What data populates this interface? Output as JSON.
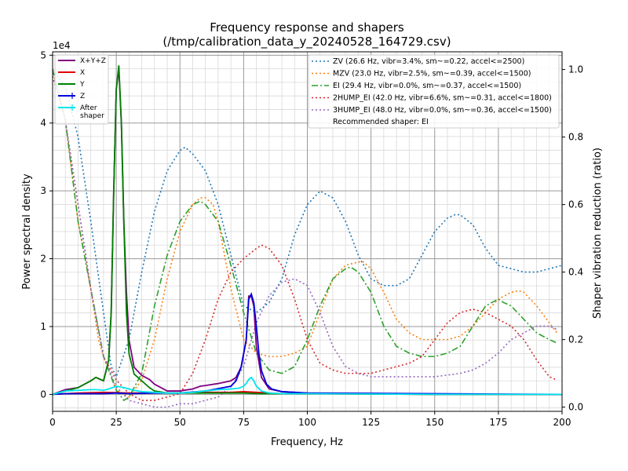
{
  "chart_data": {
    "type": "line",
    "title": "Frequency response and shapers",
    "subtitle": "(/tmp/calibration_data_y_20240528_164729.csv)",
    "xlabel": "Frequency, Hz",
    "ylabel": "Power spectral density",
    "y2label": "Shaper vibration reduction (ratio)",
    "y_exponent_label": "1e4",
    "xlim": [
      0,
      200
    ],
    "ylim": [
      -0.25,
      5.05
    ],
    "y2lim": [
      -0.0125,
      1.0525
    ],
    "xticks": [
      0,
      25,
      50,
      75,
      100,
      125,
      150,
      175,
      200
    ],
    "yticks": [
      0,
      1,
      2,
      3,
      4,
      5
    ],
    "y2ticks": [
      0.0,
      0.2,
      0.4,
      0.6,
      0.8,
      1.0
    ],
    "grid": true,
    "left_legend_position": "top-left",
    "right_legend_position": "top-right",
    "recommended_text": "Recommended shaper: EI",
    "psd_series": [
      {
        "name": "X+Y+Z",
        "color": "#800080",
        "x": [
          0,
          5,
          10,
          15,
          17,
          20,
          22,
          23,
          24,
          25,
          26,
          27,
          28,
          29,
          30,
          32,
          35,
          38,
          40,
          45,
          50,
          55,
          58,
          60,
          65,
          70,
          72,
          74,
          76,
          77,
          78,
          79,
          80,
          82,
          85,
          90,
          100,
          120,
          150,
          200
        ],
        "y": [
          0,
          0.07,
          0.1,
          0.2,
          0.25,
          0.2,
          0.5,
          1.2,
          3.0,
          4.5,
          4.8,
          4.0,
          2.5,
          1.5,
          0.8,
          0.4,
          0.28,
          0.22,
          0.15,
          0.05,
          0.05,
          0.08,
          0.12,
          0.13,
          0.16,
          0.2,
          0.25,
          0.4,
          0.8,
          1.45,
          1.45,
          1.3,
          0.7,
          0.25,
          0.08,
          0.04,
          0.02,
          0.01,
          0,
          0
        ]
      },
      {
        "name": "X",
        "color": "#e00000",
        "x": [
          0,
          10,
          20,
          30,
          40,
          50,
          60,
          70,
          75,
          80,
          85,
          90,
          100,
          150,
          200
        ],
        "y": [
          0,
          0.02,
          0.03,
          0.02,
          0.02,
          0.02,
          0.03,
          0.03,
          0.04,
          0.03,
          0.02,
          0.01,
          0.01,
          0,
          0
        ]
      },
      {
        "name": "Y",
        "color": "#008000",
        "x": [
          0,
          5,
          10,
          15,
          17,
          20,
          22,
          23,
          24,
          25,
          26,
          27,
          28,
          29,
          30,
          32,
          35,
          38,
          40,
          45,
          50,
          60,
          70,
          75,
          80,
          90,
          100,
          150,
          200
        ],
        "y": [
          0,
          0.05,
          0.1,
          0.2,
          0.25,
          0.2,
          0.5,
          1.2,
          3.0,
          4.5,
          4.85,
          4.0,
          2.5,
          1.2,
          0.6,
          0.3,
          0.2,
          0.1,
          0.05,
          0.02,
          0.02,
          0.02,
          0.02,
          0.02,
          0.01,
          0.01,
          0.01,
          0,
          0
        ]
      },
      {
        "name": "Z",
        "color": "#0000dd",
        "x": [
          0,
          5,
          10,
          20,
          25,
          30,
          40,
          50,
          60,
          70,
          72,
          74,
          76,
          77,
          78,
          79,
          80,
          81,
          82,
          84,
          86,
          90,
          95,
          100,
          150,
          200
        ],
        "y": [
          0,
          0.01,
          0.01,
          0.01,
          0.02,
          0.01,
          0.02,
          0.02,
          0.05,
          0.12,
          0.2,
          0.4,
          0.8,
          1.4,
          1.48,
          1.35,
          1.0,
          0.6,
          0.35,
          0.15,
          0.08,
          0.04,
          0.03,
          0.02,
          0.01,
          0
        ],
        "marker": "+"
      },
      {
        "name": "After\nshaper",
        "color": "#00e5ee",
        "x": [
          0,
          5,
          10,
          15,
          17,
          20,
          22,
          25,
          28,
          30,
          32,
          35,
          40,
          45,
          50,
          55,
          60,
          65,
          70,
          73,
          75,
          76,
          77,
          78,
          79,
          80,
          82,
          85,
          90,
          100,
          150,
          200
        ],
        "y": [
          0,
          0.05,
          0.06,
          0.07,
          0.07,
          0.06,
          0.08,
          0.12,
          0.1,
          0.08,
          0.06,
          0.04,
          0.03,
          0.02,
          0.02,
          0.03,
          0.05,
          0.07,
          0.08,
          0.09,
          0.12,
          0.16,
          0.22,
          0.25,
          0.2,
          0.12,
          0.05,
          0.02,
          0.01,
          0.01,
          0,
          0
        ],
        "marker": "+"
      }
    ],
    "shaper_series": [
      {
        "name": "ZV (26.6 Hz, vibr=3.4%, sm~=0.22, accel<=2500)",
        "color": "#1f77b4",
        "dash": "2,3",
        "x": [
          0,
          5,
          10,
          15,
          20,
          23,
          25,
          30,
          35,
          40,
          45,
          50,
          52,
          55,
          60,
          65,
          70,
          75,
          80,
          85,
          90,
          95,
          100,
          105,
          110,
          115,
          120,
          125,
          130,
          135,
          140,
          145,
          150,
          155,
          158,
          160,
          165,
          170,
          175,
          180,
          185,
          190,
          195,
          200
        ],
        "y": [
          1.0,
          0.95,
          0.8,
          0.55,
          0.28,
          0.12,
          0.09,
          0.2,
          0.4,
          0.58,
          0.7,
          0.76,
          0.77,
          0.75,
          0.7,
          0.6,
          0.45,
          0.3,
          0.28,
          0.31,
          0.38,
          0.51,
          0.6,
          0.64,
          0.62,
          0.55,
          0.45,
          0.38,
          0.36,
          0.36,
          0.38,
          0.45,
          0.52,
          0.56,
          0.57,
          0.57,
          0.54,
          0.47,
          0.42,
          0.41,
          0.4,
          0.4,
          0.41,
          0.42
        ]
      },
      {
        "name": "MZV (23.0 Hz, vibr=2.5%, sm~=0.39, accel<=1500)",
        "color": "#ff7f0e",
        "dash": "2,3",
        "x": [
          0,
          5,
          10,
          15,
          18,
          20,
          25,
          30,
          35,
          40,
          45,
          50,
          55,
          58,
          60,
          63,
          65,
          70,
          75,
          80,
          85,
          90,
          95,
          100,
          105,
          110,
          115,
          120,
          122,
          125,
          130,
          135,
          140,
          145,
          150,
          155,
          160,
          165,
          170,
          175,
          180,
          183,
          185,
          190,
          195,
          198
        ],
        "y": [
          1.0,
          0.85,
          0.55,
          0.35,
          0.2,
          0.15,
          0.05,
          0.03,
          0.08,
          0.2,
          0.38,
          0.52,
          0.6,
          0.62,
          0.62,
          0.6,
          0.55,
          0.35,
          0.2,
          0.16,
          0.15,
          0.15,
          0.16,
          0.18,
          0.28,
          0.38,
          0.42,
          0.43,
          0.43,
          0.41,
          0.34,
          0.26,
          0.22,
          0.2,
          0.2,
          0.2,
          0.21,
          0.24,
          0.28,
          0.32,
          0.34,
          0.345,
          0.34,
          0.3,
          0.25,
          0.22
        ]
      },
      {
        "name": "EI (29.4 Hz, vibr=0.0%, sm~=0.37, accel<=1500)",
        "color": "#2ca02c",
        "dash": "8,3,2,3",
        "x": [
          0,
          5,
          10,
          15,
          20,
          25,
          28,
          30,
          35,
          40,
          45,
          50,
          55,
          58,
          60,
          65,
          70,
          75,
          80,
          85,
          90,
          95,
          100,
          105,
          110,
          115,
          117,
          120,
          125,
          130,
          135,
          140,
          145,
          150,
          155,
          160,
          165,
          170,
          175,
          177,
          180,
          185,
          190,
          195,
          198
        ],
        "y": [
          1.0,
          0.85,
          0.55,
          0.35,
          0.15,
          0.05,
          0.02,
          0.03,
          0.1,
          0.3,
          0.45,
          0.55,
          0.6,
          0.61,
          0.6,
          0.55,
          0.42,
          0.28,
          0.16,
          0.11,
          0.1,
          0.12,
          0.2,
          0.3,
          0.38,
          0.41,
          0.415,
          0.4,
          0.34,
          0.24,
          0.18,
          0.16,
          0.15,
          0.15,
          0.16,
          0.18,
          0.24,
          0.3,
          0.32,
          0.31,
          0.3,
          0.26,
          0.22,
          0.2,
          0.19
        ]
      },
      {
        "name": "2HUMP_EI (42.0 Hz, vibr=6.6%, sm~=0.31, accel<=1800)",
        "color": "#d62728",
        "dash": "2,3",
        "x": [
          0,
          5,
          10,
          15,
          20,
          25,
          30,
          35,
          40,
          45,
          50,
          55,
          60,
          65,
          70,
          75,
          80,
          82,
          85,
          90,
          95,
          100,
          105,
          110,
          115,
          120,
          125,
          130,
          135,
          140,
          145,
          150,
          155,
          160,
          165,
          170,
          175,
          180,
          185,
          190,
          195,
          198
        ],
        "y": [
          0.98,
          0.85,
          0.6,
          0.35,
          0.15,
          0.08,
          0.04,
          0.02,
          0.02,
          0.03,
          0.04,
          0.1,
          0.2,
          0.32,
          0.4,
          0.44,
          0.47,
          0.48,
          0.47,
          0.42,
          0.32,
          0.2,
          0.13,
          0.11,
          0.1,
          0.1,
          0.1,
          0.11,
          0.12,
          0.13,
          0.15,
          0.2,
          0.25,
          0.28,
          0.29,
          0.28,
          0.26,
          0.24,
          0.2,
          0.14,
          0.09,
          0.08
        ]
      },
      {
        "name": "3HUMP_EI (48.0 Hz, vibr=0.0%, sm~=0.36, accel<=1500)",
        "color": "#9467bd",
        "dash": "2,3",
        "x": [
          0,
          5,
          10,
          15,
          20,
          25,
          30,
          35,
          40,
          45,
          50,
          55,
          60,
          65,
          70,
          75,
          80,
          85,
          90,
          95,
          100,
          105,
          110,
          115,
          120,
          125,
          130,
          140,
          150,
          160,
          165,
          170,
          175,
          180,
          185,
          190,
          195,
          198
        ],
        "y": [
          0.98,
          0.85,
          0.6,
          0.35,
          0.15,
          0.06,
          0.02,
          0.01,
          0.0,
          0.0,
          0.01,
          0.01,
          0.02,
          0.03,
          0.06,
          0.12,
          0.25,
          0.33,
          0.37,
          0.38,
          0.36,
          0.28,
          0.18,
          0.12,
          0.1,
          0.09,
          0.09,
          0.09,
          0.09,
          0.1,
          0.11,
          0.13,
          0.16,
          0.2,
          0.22,
          0.24,
          0.24,
          0.23
        ]
      }
    ]
  }
}
